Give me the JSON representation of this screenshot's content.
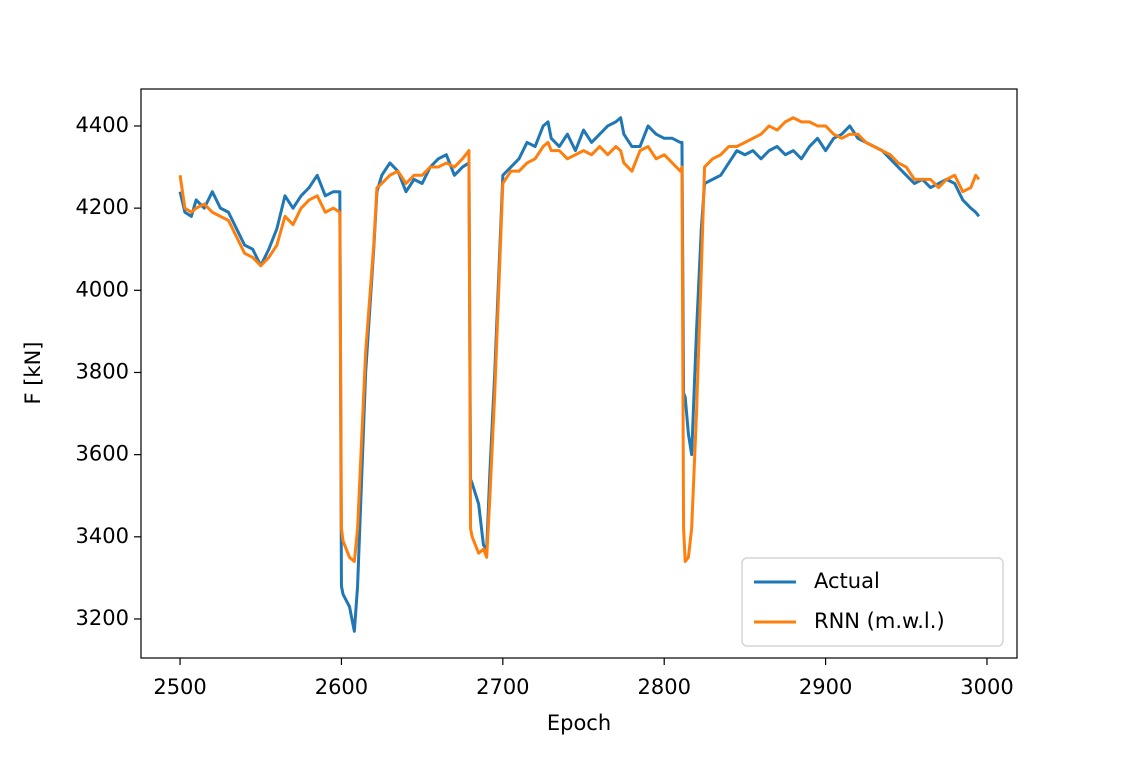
{
  "chart_data": {
    "type": "line",
    "xlabel": "Epoch",
    "ylabel": "F [kN]",
    "x": [
      2500,
      2503,
      2507,
      2510,
      2515,
      2520,
      2525,
      2530,
      2535,
      2540,
      2545,
      2550,
      2555,
      2560,
      2565,
      2570,
      2575,
      2580,
      2585,
      2590,
      2595,
      2599,
      2600,
      2601,
      2605,
      2608,
      2610,
      2615,
      2620,
      2622,
      2625,
      2630,
      2635,
      2640,
      2645,
      2650,
      2655,
      2660,
      2665,
      2670,
      2675,
      2679,
      2680,
      2681,
      2685,
      2688,
      2690,
      2692,
      2695,
      2700,
      2705,
      2710,
      2715,
      2720,
      2725,
      2728,
      2730,
      2735,
      2740,
      2745,
      2750,
      2755,
      2760,
      2765,
      2770,
      2773,
      2775,
      2780,
      2785,
      2790,
      2795,
      2800,
      2805,
      2810,
      2811,
      2812,
      2813,
      2815,
      2817,
      2820,
      2823,
      2825,
      2830,
      2835,
      2840,
      2845,
      2850,
      2855,
      2860,
      2865,
      2870,
      2875,
      2880,
      2885,
      2890,
      2895,
      2900,
      2905,
      2910,
      2915,
      2920,
      2925,
      2930,
      2935,
      2940,
      2945,
      2950,
      2955,
      2960,
      2965,
      2970,
      2975,
      2980,
      2985,
      2990,
      2993,
      2995
    ],
    "series": [
      {
        "name": "Actual",
        "color": "#1f77b4",
        "values": [
          4240,
          4190,
          4180,
          4220,
          4200,
          4240,
          4200,
          4190,
          4150,
          4110,
          4100,
          4060,
          4100,
          4150,
          4230,
          4200,
          4230,
          4250,
          4280,
          4230,
          4240,
          4240,
          3280,
          3260,
          3230,
          3170,
          3280,
          3800,
          4100,
          4240,
          4280,
          4310,
          4290,
          4240,
          4270,
          4260,
          4300,
          4320,
          4330,
          4280,
          4300,
          4310,
          3540,
          3530,
          3480,
          3380,
          3370,
          3560,
          3800,
          4280,
          4300,
          4320,
          4360,
          4350,
          4400,
          4410,
          4370,
          4350,
          4380,
          4340,
          4390,
          4360,
          4380,
          4400,
          4410,
          4420,
          4380,
          4350,
          4350,
          4400,
          4380,
          4370,
          4370,
          4360,
          4360,
          3750,
          3740,
          3650,
          3600,
          3900,
          4150,
          4260,
          4270,
          4280,
          4310,
          4340,
          4330,
          4340,
          4320,
          4340,
          4350,
          4330,
          4340,
          4320,
          4350,
          4370,
          4340,
          4370,
          4380,
          4400,
          4370,
          4360,
          4350,
          4340,
          4320,
          4300,
          4280,
          4260,
          4270,
          4250,
          4260,
          4270,
          4260,
          4220,
          4200,
          4190,
          4180
        ]
      },
      {
        "name": "RNN (m.w.l.)",
        "color": "#ff7f0e",
        "values": [
          4280,
          4200,
          4190,
          4200,
          4210,
          4190,
          4180,
          4170,
          4130,
          4090,
          4080,
          4060,
          4080,
          4110,
          4180,
          4160,
          4200,
          4220,
          4230,
          4190,
          4200,
          4190,
          3420,
          3390,
          3350,
          3340,
          3420,
          3850,
          4110,
          4250,
          4260,
          4280,
          4290,
          4260,
          4280,
          4280,
          4300,
          4300,
          4310,
          4300,
          4320,
          4340,
          3420,
          3400,
          3360,
          3370,
          3350,
          3500,
          3750,
          4260,
          4290,
          4290,
          4310,
          4320,
          4350,
          4360,
          4340,
          4340,
          4320,
          4330,
          4340,
          4330,
          4350,
          4330,
          4350,
          4340,
          4310,
          4290,
          4340,
          4350,
          4320,
          4330,
          4310,
          4290,
          4300,
          3420,
          3340,
          3350,
          3420,
          3700,
          4050,
          4300,
          4320,
          4330,
          4350,
          4350,
          4360,
          4370,
          4380,
          4400,
          4390,
          4410,
          4420,
          4410,
          4410,
          4400,
          4400,
          4380,
          4370,
          4380,
          4380,
          4360,
          4350,
          4340,
          4330,
          4310,
          4300,
          4270,
          4270,
          4270,
          4250,
          4270,
          4280,
          4240,
          4250,
          4280,
          4270
        ]
      }
    ],
    "xlim": [
      2475.8,
      3018.6
    ],
    "xticks": [
      2500,
      2600,
      2700,
      2800,
      2900,
      3000
    ],
    "ylim": [
      3105,
      4490
    ],
    "yticks": [
      3200,
      3400,
      3600,
      3800,
      4000,
      4200,
      4400
    ],
    "grid": false,
    "legend": "lower right"
  }
}
